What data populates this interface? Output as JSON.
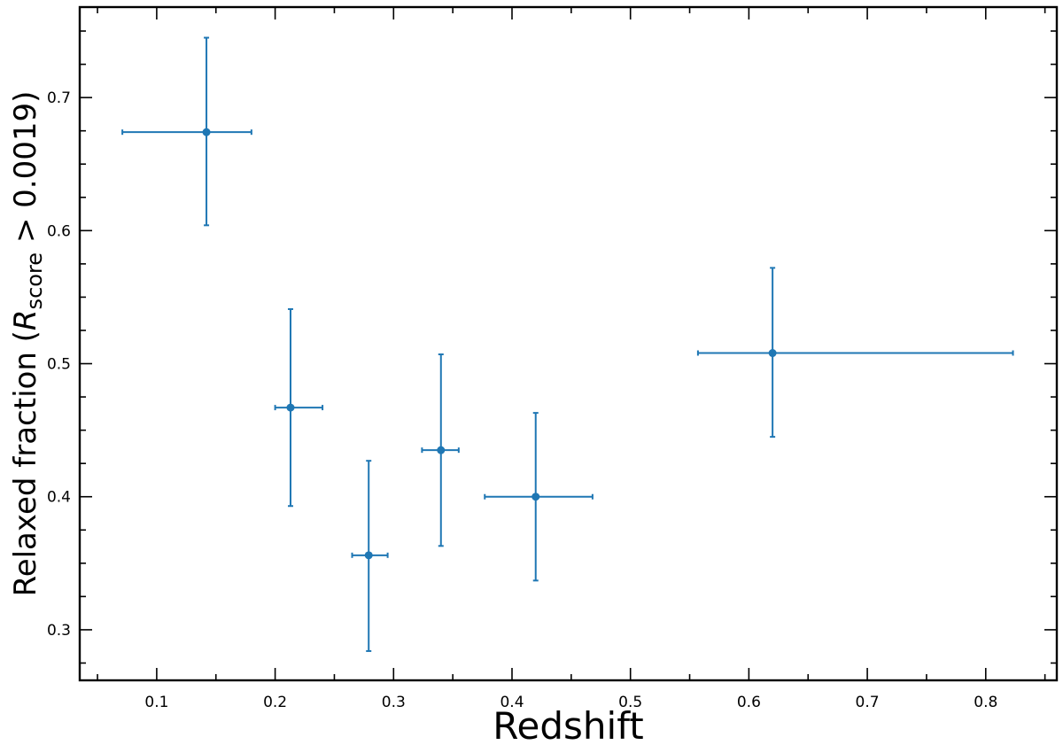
{
  "chart_data": {
    "type": "scatter",
    "title": "",
    "xlabel": "Redshift",
    "ylabel": {
      "prefix": "Relaxed fraction (",
      "symbol": "R",
      "subscript": "score",
      "suffix": " > 0.0019)"
    },
    "xlim": [
      0.035,
      0.86
    ],
    "ylim": [
      0.262,
      0.768
    ],
    "xticks": [
      0.1,
      0.2,
      0.3,
      0.4,
      0.5,
      0.6,
      0.7,
      0.8
    ],
    "xtick_labels": [
      "0.1",
      "0.2",
      "0.3",
      "0.4",
      "0.5",
      "0.6",
      "0.7",
      "0.8"
    ],
    "yticks": [
      0.3,
      0.4,
      0.5,
      0.6,
      0.7
    ],
    "ytick_labels": [
      "0.3",
      "0.4",
      "0.5",
      "0.6",
      "0.7"
    ],
    "grid": false,
    "series": [
      {
        "color": "#1f77b4",
        "points": [
          {
            "x": 0.142,
            "y": 0.674,
            "xerr": [
              0.071,
              0.038
            ],
            "yerr": [
              0.07,
              0.071
            ]
          },
          {
            "x": 0.213,
            "y": 0.467,
            "xerr": [
              0.013,
              0.027
            ],
            "yerr": [
              0.074,
              0.074
            ]
          },
          {
            "x": 0.279,
            "y": 0.356,
            "xerr": [
              0.014,
              0.016
            ],
            "yerr": [
              0.072,
              0.071
            ]
          },
          {
            "x": 0.34,
            "y": 0.435,
            "xerr": [
              0.016,
              0.015
            ],
            "yerr": [
              0.072,
              0.072
            ]
          },
          {
            "x": 0.42,
            "y": 0.4,
            "xerr": [
              0.043,
              0.048
            ],
            "yerr": [
              0.063,
              0.063
            ]
          },
          {
            "x": 0.62,
            "y": 0.508,
            "xerr": [
              0.063,
              0.203
            ],
            "yerr": [
              0.063,
              0.064
            ]
          }
        ]
      }
    ]
  }
}
